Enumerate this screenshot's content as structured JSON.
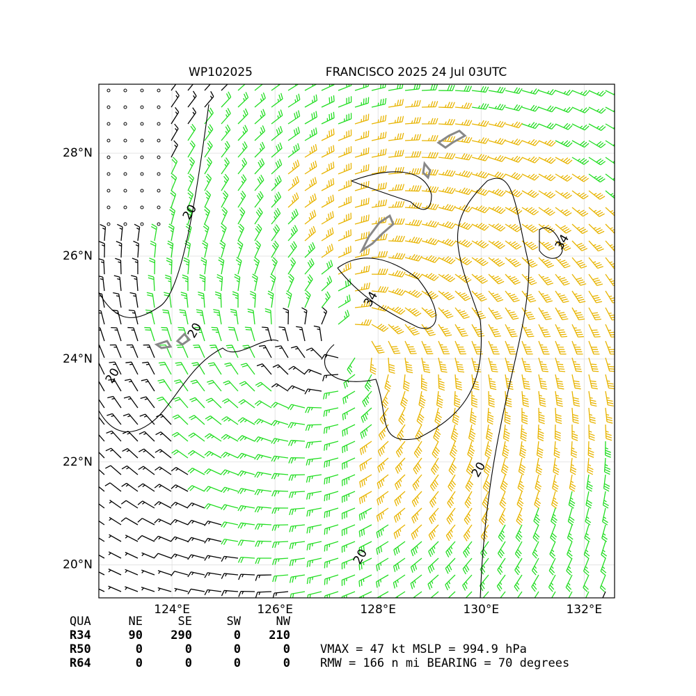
{
  "header": {
    "title_left": "WP102025",
    "title_right": "FRANCISCO 2025 24 Jul 03UTC"
  },
  "map": {
    "xlim": [
      122.58,
      132.59
    ],
    "ylim": [
      19.36,
      29.34
    ],
    "xticks": [
      {
        "value": 124,
        "label": "124°E"
      },
      {
        "value": 126,
        "label": "126°E"
      },
      {
        "value": 128,
        "label": "128°E"
      },
      {
        "value": 130,
        "label": "130°E"
      },
      {
        "value": 132,
        "label": "132°E"
      }
    ],
    "yticks": [
      {
        "value": 20,
        "label": "20°N"
      },
      {
        "value": 22,
        "label": "22°N"
      },
      {
        "value": 24,
        "label": "24°N"
      },
      {
        "value": 26,
        "label": "26°N"
      },
      {
        "value": 28,
        "label": "28°N"
      }
    ],
    "grid": true,
    "contour_levels": [
      20,
      34
    ]
  },
  "table": {
    "header": [
      "QUA",
      "NE",
      "SE",
      "SW",
      "NW"
    ],
    "rows": [
      [
        "R34",
        "90",
        "290",
        "0",
        "210"
      ],
      [
        "R50",
        "0",
        "0",
        "0",
        "0"
      ],
      [
        "R64",
        "0",
        "0",
        "0",
        "0"
      ]
    ]
  },
  "info": [
    "VMAX =  47 kt MSLP = 994.9 hPa",
    "RMW = 166 n mi BEARING =  70 degrees"
  ]
}
